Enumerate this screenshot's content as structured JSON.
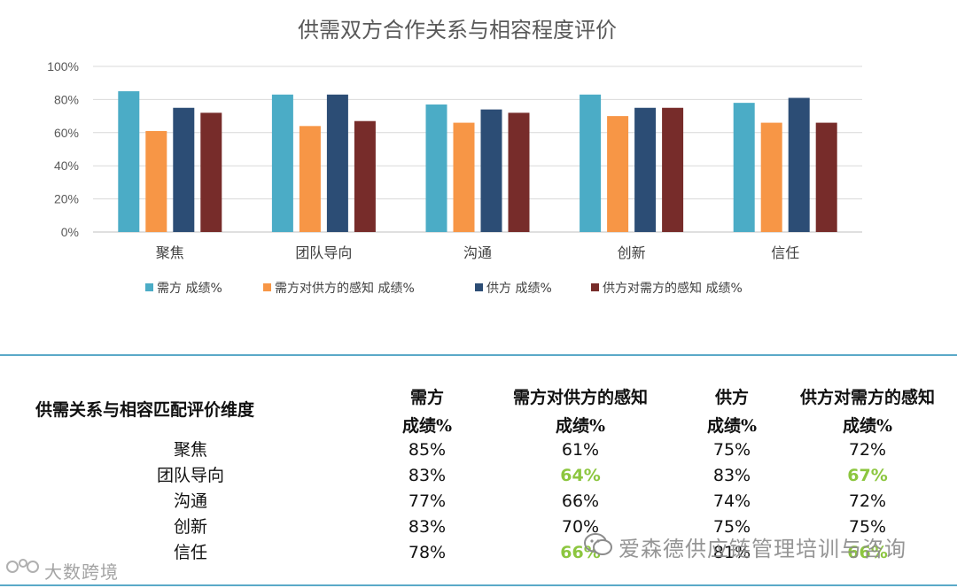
{
  "chart_data": {
    "type": "bar",
    "title": "供需双方合作关系与相容程度评价",
    "categories": [
      "聚焦",
      "团队导向",
      "沟通",
      "创新",
      "信任"
    ],
    "series": [
      {
        "name": "需方 成绩%",
        "color": "#4bacc6",
        "values": [
          85,
          83,
          77,
          83,
          78
        ]
      },
      {
        "name": "需方对供方的感知 成绩%",
        "color": "#f79646",
        "values": [
          61,
          64,
          66,
          70,
          66
        ]
      },
      {
        "name": "供方 成绩%",
        "color": "#2c4d75",
        "values": [
          75,
          83,
          74,
          75,
          81
        ]
      },
      {
        "name": "供方对需方的感知 成绩%",
        "color": "#772c2a",
        "values": [
          72,
          67,
          72,
          75,
          66
        ]
      }
    ],
    "ylim": [
      0,
      100
    ],
    "yticks": [
      "0%",
      "20%",
      "40%",
      "60%",
      "80%",
      "100%"
    ],
    "grid": true,
    "legend_position": "bottom",
    "xlabel": "",
    "ylabel": ""
  },
  "table": {
    "corner": "供需关系与相容匹配评价维度",
    "headers": [
      [
        "需方",
        "成绩%"
      ],
      [
        "需方对供方的感知",
        "成绩%"
      ],
      [
        "供方",
        "成绩%"
      ],
      [
        "供方对需方的感知",
        "成绩%"
      ]
    ],
    "rows": [
      {
        "label": "聚焦",
        "values": [
          "85%",
          "61%",
          "75%",
          "72%"
        ]
      },
      {
        "label": "团队导向",
        "values": [
          "83%",
          "64%",
          "83%",
          "67%"
        ]
      },
      {
        "label": "沟通",
        "values": [
          "77%",
          "66%",
          "74%",
          "72%"
        ]
      },
      {
        "label": "创新",
        "values": [
          "83%",
          "70%",
          "75%",
          "75%"
        ]
      },
      {
        "label": "信任",
        "values": [
          "78%",
          "66%",
          "81%",
          "66%"
        ]
      }
    ],
    "highlight_color": "#8cc63f",
    "highlighted_cells": [
      [
        1,
        1
      ],
      [
        1,
        3
      ],
      [
        4,
        1
      ],
      [
        4,
        3
      ]
    ]
  },
  "watermarks": {
    "left": "大数跨境",
    "right": "爱森德供应链管理培训与咨询"
  }
}
